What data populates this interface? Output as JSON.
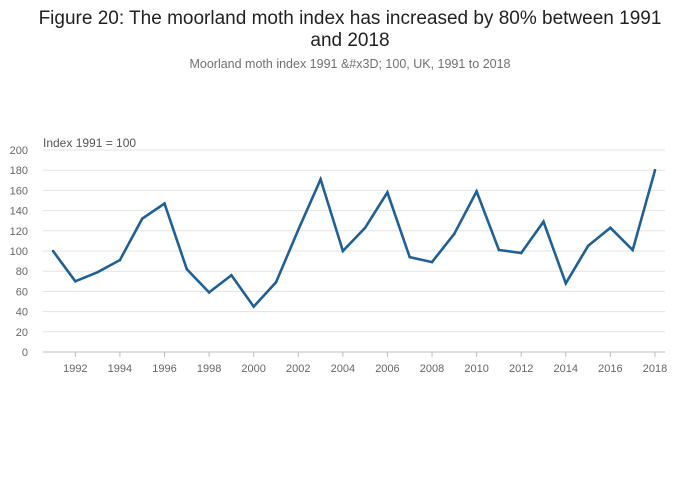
{
  "chart_data": {
    "type": "line",
    "title_line1": "Figure 20: The moorland moth index has increased by 80% between 1991",
    "title_line2": "and 2018",
    "subtitle": "Moorland moth index 1991 &#x3D; 100, UK, 1991 to 2018",
    "ylabel": "Index 1991 = 100",
    "xlabel": "",
    "ylim": [
      0,
      200
    ],
    "yticks": [
      0,
      20,
      40,
      60,
      80,
      100,
      120,
      140,
      160,
      180,
      200
    ],
    "xticks": [
      1992,
      1994,
      1996,
      1998,
      2000,
      2002,
      2004,
      2006,
      2008,
      2010,
      2012,
      2014,
      2016,
      2018
    ],
    "x": [
      1991,
      1992,
      1993,
      1994,
      1995,
      1996,
      1997,
      1998,
      1999,
      2000,
      2001,
      2002,
      2003,
      2004,
      2005,
      2006,
      2007,
      2008,
      2009,
      2010,
      2011,
      2012,
      2013,
      2014,
      2015,
      2016,
      2017,
      2018
    ],
    "series": [
      {
        "name": "Moorland moth index",
        "color": "#206095",
        "values": [
          100,
          70,
          79,
          91,
          132,
          147,
          82,
          59,
          76,
          45,
          69,
          121,
          171,
          100,
          123,
          158,
          94,
          89,
          117,
          159,
          101,
          98,
          129,
          68,
          105,
          123,
          101,
          180
        ]
      }
    ],
    "grid": true,
    "legend": "none"
  }
}
